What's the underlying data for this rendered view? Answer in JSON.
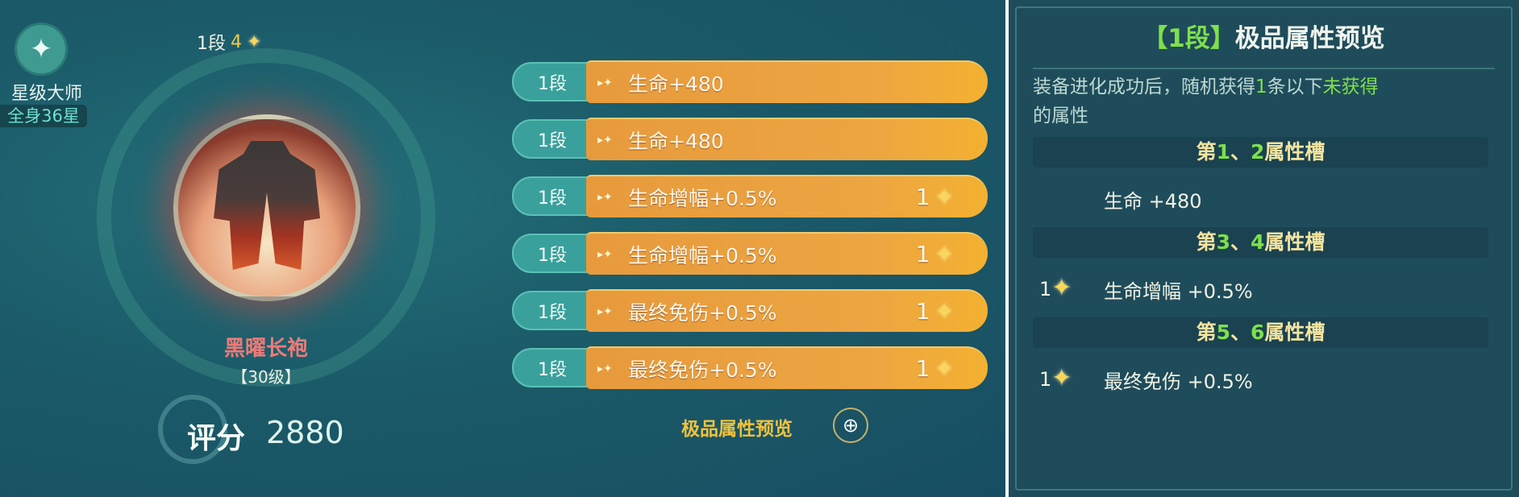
{
  "badge": {
    "icon": "star-flower-icon",
    "title": "星级大师",
    "stars": "全身36星"
  },
  "tier_top": {
    "tier": "1段",
    "count": "4"
  },
  "item": {
    "name": "黑曜长袍",
    "level": "【30级】"
  },
  "score": {
    "label": "评分",
    "value": "2880"
  },
  "attributes": [
    {
      "tier": "1段",
      "text": "生命+480",
      "level": ""
    },
    {
      "tier": "1段",
      "text": "生命+480",
      "level": ""
    },
    {
      "tier": "1段",
      "text": "生命增幅+0.5%",
      "level": "1"
    },
    {
      "tier": "1段",
      "text": "生命增幅+0.5%",
      "level": "1"
    },
    {
      "tier": "1段",
      "text": "最终免伤+0.5%",
      "level": "1"
    },
    {
      "tier": "1段",
      "text": "最终免伤+0.5%",
      "level": "1"
    }
  ],
  "preview_link": "极品属性预览",
  "panel": {
    "title_bracket": "【1段】",
    "title": "极品属性预览",
    "desc_a": "装备进化成功后，随机获得",
    "desc_num": "1",
    "desc_b": "条以下",
    "desc_c": "未获得",
    "desc_d": "的属性",
    "sections": [
      {
        "pre": "第",
        "a": "1",
        "sep": "、",
        "b": "2",
        "post": "属性槽",
        "level": "",
        "attr": "生命 +480"
      },
      {
        "pre": "第",
        "a": "3",
        "sep": "、",
        "b": "4",
        "post": "属性槽",
        "level": "1",
        "attr": "生命增幅 +0.5%"
      },
      {
        "pre": "第",
        "a": "5",
        "sep": "、",
        "b": "6",
        "post": "属性槽",
        "level": "1",
        "attr": "最终免伤 +0.5%"
      }
    ]
  },
  "colors": {
    "bar": "#eda542",
    "tier_pill": "#3aa09c",
    "highlight_green": "#7ee04c",
    "item_name": "#f07a78",
    "link": "#f0c23c"
  }
}
